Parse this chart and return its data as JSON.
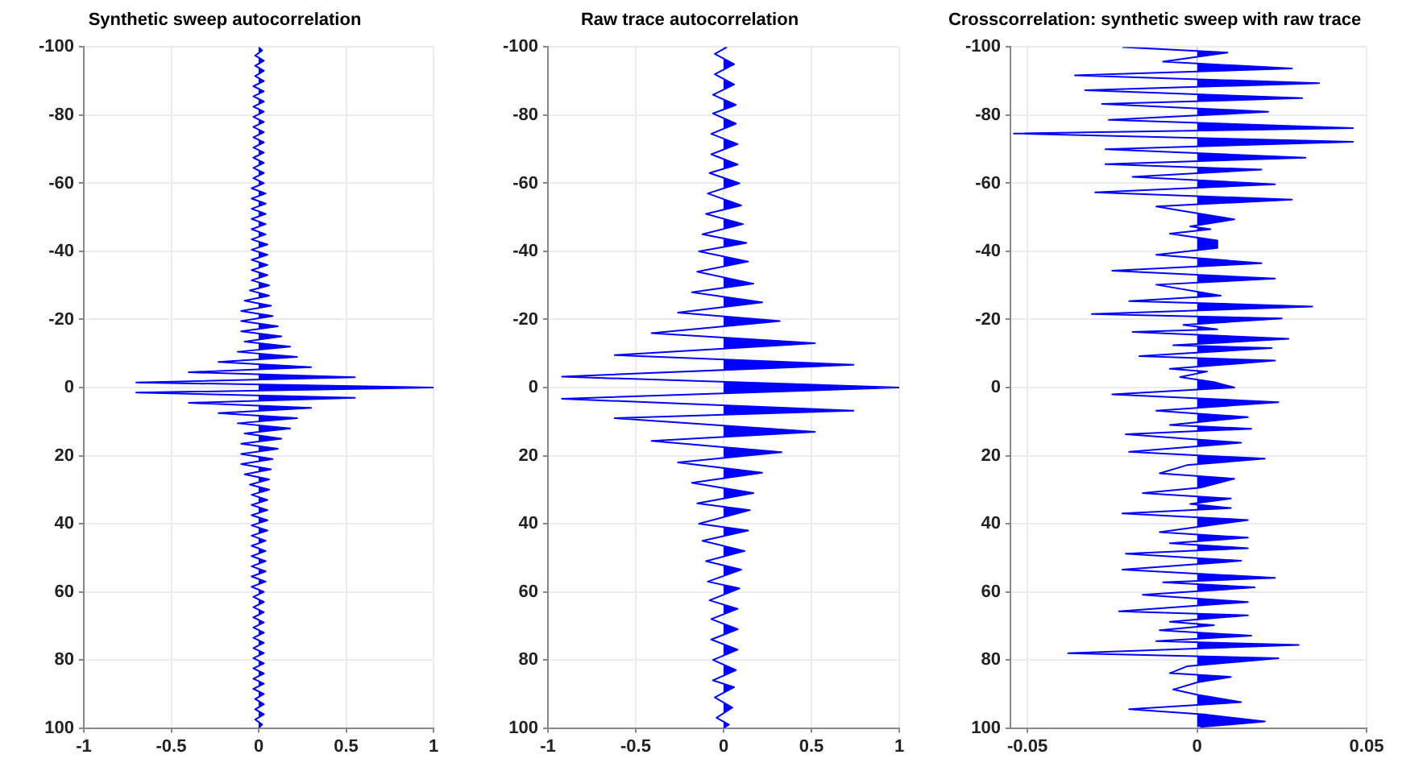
{
  "chart_data": [
    {
      "type": "area",
      "title": "Synthetic sweep autocorrelation",
      "xlim": [
        -1,
        1
      ],
      "xticks": [
        -1,
        -0.5,
        0,
        0.5,
        1
      ],
      "ylim": [
        100,
        -100
      ],
      "yticks": [
        -100,
        -80,
        -60,
        -40,
        -20,
        0,
        20,
        40,
        60,
        80,
        100
      ],
      "grid": true,
      "series": [
        {
          "color": "#0000ff",
          "x": [
            0,
            0.02,
            -0.02,
            0.03,
            -0.02,
            0.03,
            -0.02,
            0.03,
            -0.03,
            0.03,
            -0.03,
            0.03,
            -0.03,
            0.03,
            -0.03,
            0.03,
            -0.03,
            0.03,
            -0.03,
            0.03,
            -0.03,
            0.03,
            -0.03,
            0.03,
            -0.03,
            0.03,
            -0.03,
            0.03,
            -0.04,
            0.04,
            -0.04,
            0.04,
            -0.04,
            0.04,
            -0.04,
            0.04,
            -0.04,
            0.04,
            -0.04,
            0.05,
            -0.04,
            0.05,
            -0.04,
            0.05,
            -0.04,
            0.05,
            -0.04,
            0.06,
            -0.05,
            0.06,
            -0.08,
            0.07,
            -0.1,
            0.08,
            -0.1,
            0.11,
            -0.1,
            0.13,
            -0.08,
            0.18,
            -0.12,
            0.22,
            -0.23,
            0.3,
            -0.4,
            0.55,
            -0.7,
            1,
            -0.7,
            0.55,
            -0.4,
            0.3,
            -0.23,
            0.22,
            -0.12,
            0.18,
            -0.08,
            0.13,
            -0.1,
            0.11,
            -0.1,
            0.08,
            -0.1,
            0.07,
            -0.08,
            0.06,
            -0.05,
            0.06,
            -0.04,
            0.05,
            -0.04,
            0.05,
            -0.04,
            0.05,
            -0.04,
            0.05,
            -0.04,
            0.04,
            -0.04,
            0.04,
            -0.04,
            0.04,
            -0.04,
            0.04,
            -0.04,
            0.04,
            -0.04,
            0.03,
            -0.03,
            0.03,
            -0.03,
            0.03,
            -0.03,
            0.03,
            -0.03,
            0.03,
            -0.03,
            0.03,
            -0.03,
            0.03,
            -0.03,
            0.03,
            -0.03,
            0.03,
            -0.03,
            0.03,
            -0.03,
            0.03,
            -0.02,
            0.03,
            -0.02,
            0.03,
            -0.02,
            0.02,
            0
          ],
          "values": [
            -100,
            -99,
            -97.5,
            -96,
            -94.5,
            -93,
            -91.5,
            -90,
            -88.5,
            -87,
            -85.5,
            -84,
            -82.5,
            -81,
            -79.5,
            -78,
            -76.5,
            -75,
            -73.5,
            -72,
            -70.5,
            -69,
            -67.5,
            -66,
            -64.5,
            -63,
            -61.5,
            -60,
            -58.5,
            -57,
            -55.5,
            -54,
            -52.5,
            -51,
            -49.5,
            -48,
            -46.5,
            -45,
            -43.5,
            -42,
            -40.5,
            -39,
            -37.5,
            -36,
            -34.5,
            -33,
            -31.5,
            -30,
            -28.5,
            -27,
            -25.5,
            -24,
            -22.5,
            -21,
            -19.5,
            -18,
            -16.5,
            -15,
            -13.5,
            -12,
            -10.5,
            -9,
            -7.5,
            -6,
            -4.5,
            -3,
            -1.5,
            0,
            1.5,
            3,
            4.5,
            6,
            7.5,
            9,
            10.5,
            12,
            13.5,
            15,
            16.5,
            18,
            19.5,
            21,
            22.5,
            24,
            25.5,
            27,
            28.5,
            30,
            31.5,
            33,
            34.5,
            36,
            37.5,
            39,
            40.5,
            42,
            43.5,
            45,
            46.5,
            48,
            49.5,
            51,
            52.5,
            54,
            55.5,
            57,
            58.5,
            60,
            61.5,
            63,
            64.5,
            66,
            67.5,
            69,
            70.5,
            72,
            73.5,
            75,
            76.5,
            78,
            79.5,
            81,
            82.5,
            84,
            85.5,
            87,
            88.5,
            90,
            91.5,
            93,
            94.5,
            96,
            97.5,
            99,
            100
          ]
        }
      ]
    },
    {
      "type": "area",
      "title": "Raw trace autocorrelation",
      "xlim": [
        -1,
        1
      ],
      "xticks": [
        -1,
        -0.5,
        0,
        0.5,
        1
      ],
      "ylim": [
        100,
        -100
      ],
      "yticks": [
        -100,
        -80,
        -60,
        -40,
        -20,
        0,
        20,
        40,
        60,
        80,
        100
      ],
      "grid": true,
      "series": [
        {
          "color": "#0000ff",
          "x": [
            0.02,
            -0.05,
            0.06,
            -0.05,
            0.06,
            -0.06,
            0.07,
            -0.06,
            0.07,
            -0.07,
            0.08,
            -0.07,
            0.08,
            -0.08,
            0.09,
            -0.09,
            0.1,
            -0.1,
            0.11,
            -0.12,
            0.13,
            -0.14,
            0.14,
            -0.15,
            0.17,
            -0.18,
            0.22,
            -0.26,
            0.32,
            -0.41,
            0.52,
            -0.62,
            0.74,
            -0.92,
            1,
            -0.92,
            0.74,
            -0.62,
            0.52,
            -0.41,
            0.33,
            -0.26,
            0.22,
            -0.18,
            0.17,
            -0.15,
            0.15,
            -0.14,
            0.14,
            -0.12,
            0.12,
            -0.1,
            0.1,
            -0.09,
            0.09,
            -0.08,
            0.08,
            -0.07,
            0.08,
            -0.07,
            0.08,
            -0.06,
            0.07,
            -0.06,
            0.06,
            -0.05,
            0.05,
            -0.04,
            0.03,
            0
          ],
          "values": [
            -100,
            -98,
            -95,
            -92,
            -89,
            -86,
            -83,
            -80.5,
            -77.5,
            -74.5,
            -71.5,
            -68.5,
            -65.5,
            -63,
            -60,
            -57,
            -53.5,
            -51,
            -48,
            -45,
            -42.5,
            -40,
            -37,
            -34,
            -30.5,
            -28,
            -25,
            -22,
            -19.5,
            -16,
            -13,
            -9.5,
            -6.7,
            -3.2,
            0,
            3.3,
            6.8,
            9,
            13,
            15.7,
            19,
            22,
            25,
            28,
            31,
            34,
            36,
            40,
            42,
            45,
            48,
            51,
            53.5,
            57,
            59,
            62.5,
            65,
            68,
            71,
            74,
            77,
            80,
            83,
            86,
            88,
            91,
            94,
            97,
            99,
            100
          ]
        }
      ]
    },
    {
      "type": "area",
      "title": "Crosscorrelation: synthetic sweep with raw trace",
      "xlim": [
        -0.055,
        0.05
      ],
      "xticks": [
        -0.05,
        0,
        0.05
      ],
      "ylim": [
        100,
        -100
      ],
      "yticks": [
        -100,
        -80,
        -60,
        -40,
        -20,
        0,
        20,
        40,
        60,
        80,
        100
      ],
      "grid": true,
      "series": [
        {
          "color": "#0000ff",
          "x": [
            -0.022,
            0.009,
            -0.01,
            0.028,
            -0.036,
            0.036,
            -0.033,
            0.031,
            -0.028,
            0.021,
            -0.026,
            0.046,
            -0.054,
            0.046,
            -0.027,
            0.032,
            -0.027,
            0.019,
            -0.019,
            0.023,
            -0.03,
            0.028,
            -0.012,
            -0.005,
            0.011,
            -0.002,
            0.004,
            -0.008,
            0.006,
            0.006,
            -0.012,
            0.019,
            -0.025,
            0.023,
            -0.012,
            0.007,
            -0.02,
            0.034,
            -0.031,
            0.025,
            -0.004,
            0.006,
            -0.019,
            0.027,
            -0.007,
            0.022,
            -0.017,
            0.023,
            -0.008,
            0.003,
            -0.005,
            0.005,
            0.011,
            -0.025,
            0.024,
            -0.012,
            0.015,
            -0.008,
            0.016,
            -0.021,
            0.013,
            -0.02,
            0.02,
            -0.003,
            -0.011,
            0.011,
            0.001,
            -0.016,
            0.01,
            -0.002,
            0.01,
            -0.022,
            0.015,
            -0.011,
            0.015,
            -0.008,
            0.015,
            -0.021,
            0.013,
            -0.022,
            0.023,
            -0.01,
            0.017,
            -0.016,
            0.015,
            -0.023,
            0.015,
            -0.008,
            0.005,
            -0.011,
            0.016,
            -0.012,
            0.03,
            -0.038,
            0.024,
            -0.003,
            -0.008,
            0.01,
            0,
            -0.007,
            0,
            0.013,
            -0.02,
            0.003,
            0.02,
            0.001
          ],
          "values": [
            -100,
            -98.4,
            -95.7,
            -93.7,
            -91.7,
            -89.4,
            -87.3,
            -85,
            -83.3,
            -81,
            -78.6,
            -76.2,
            -74.6,
            -72.2,
            -70,
            -67.5,
            -65.6,
            -64,
            -61.9,
            -59.7,
            -57.3,
            -55.2,
            -53.2,
            -52,
            -49.4,
            -47.3,
            -46.5,
            -45.2,
            -43.2,
            -41,
            -39,
            -36.5,
            -34.3,
            -32,
            -30.2,
            -27,
            -25.4,
            -23.8,
            -21.6,
            -20.3,
            -18.4,
            -17.1,
            -16.3,
            -14.3,
            -12.4,
            -11.6,
            -9.2,
            -7.9,
            -5.5,
            -4.7,
            -3.1,
            -1.6,
            0,
            2,
            4.3,
            6.8,
            8.7,
            11,
            12.1,
            13.7,
            16.2,
            18.9,
            20.9,
            22.8,
            25.2,
            26.8,
            29.4,
            31,
            32.6,
            34.2,
            35.4,
            37,
            38.9,
            42.5,
            44.1,
            45.7,
            47.2,
            48.8,
            50.9,
            53.5,
            55.9,
            57.2,
            58.7,
            60.9,
            63,
            65.7,
            66.9,
            68.8,
            69.8,
            71.3,
            72.9,
            74.5,
            75.6,
            78,
            79.5,
            81.9,
            83.9,
            85,
            86.6,
            88.7,
            90.2,
            92.4,
            94.5,
            96.1,
            98.1,
            99.7
          ]
        }
      ]
    }
  ]
}
